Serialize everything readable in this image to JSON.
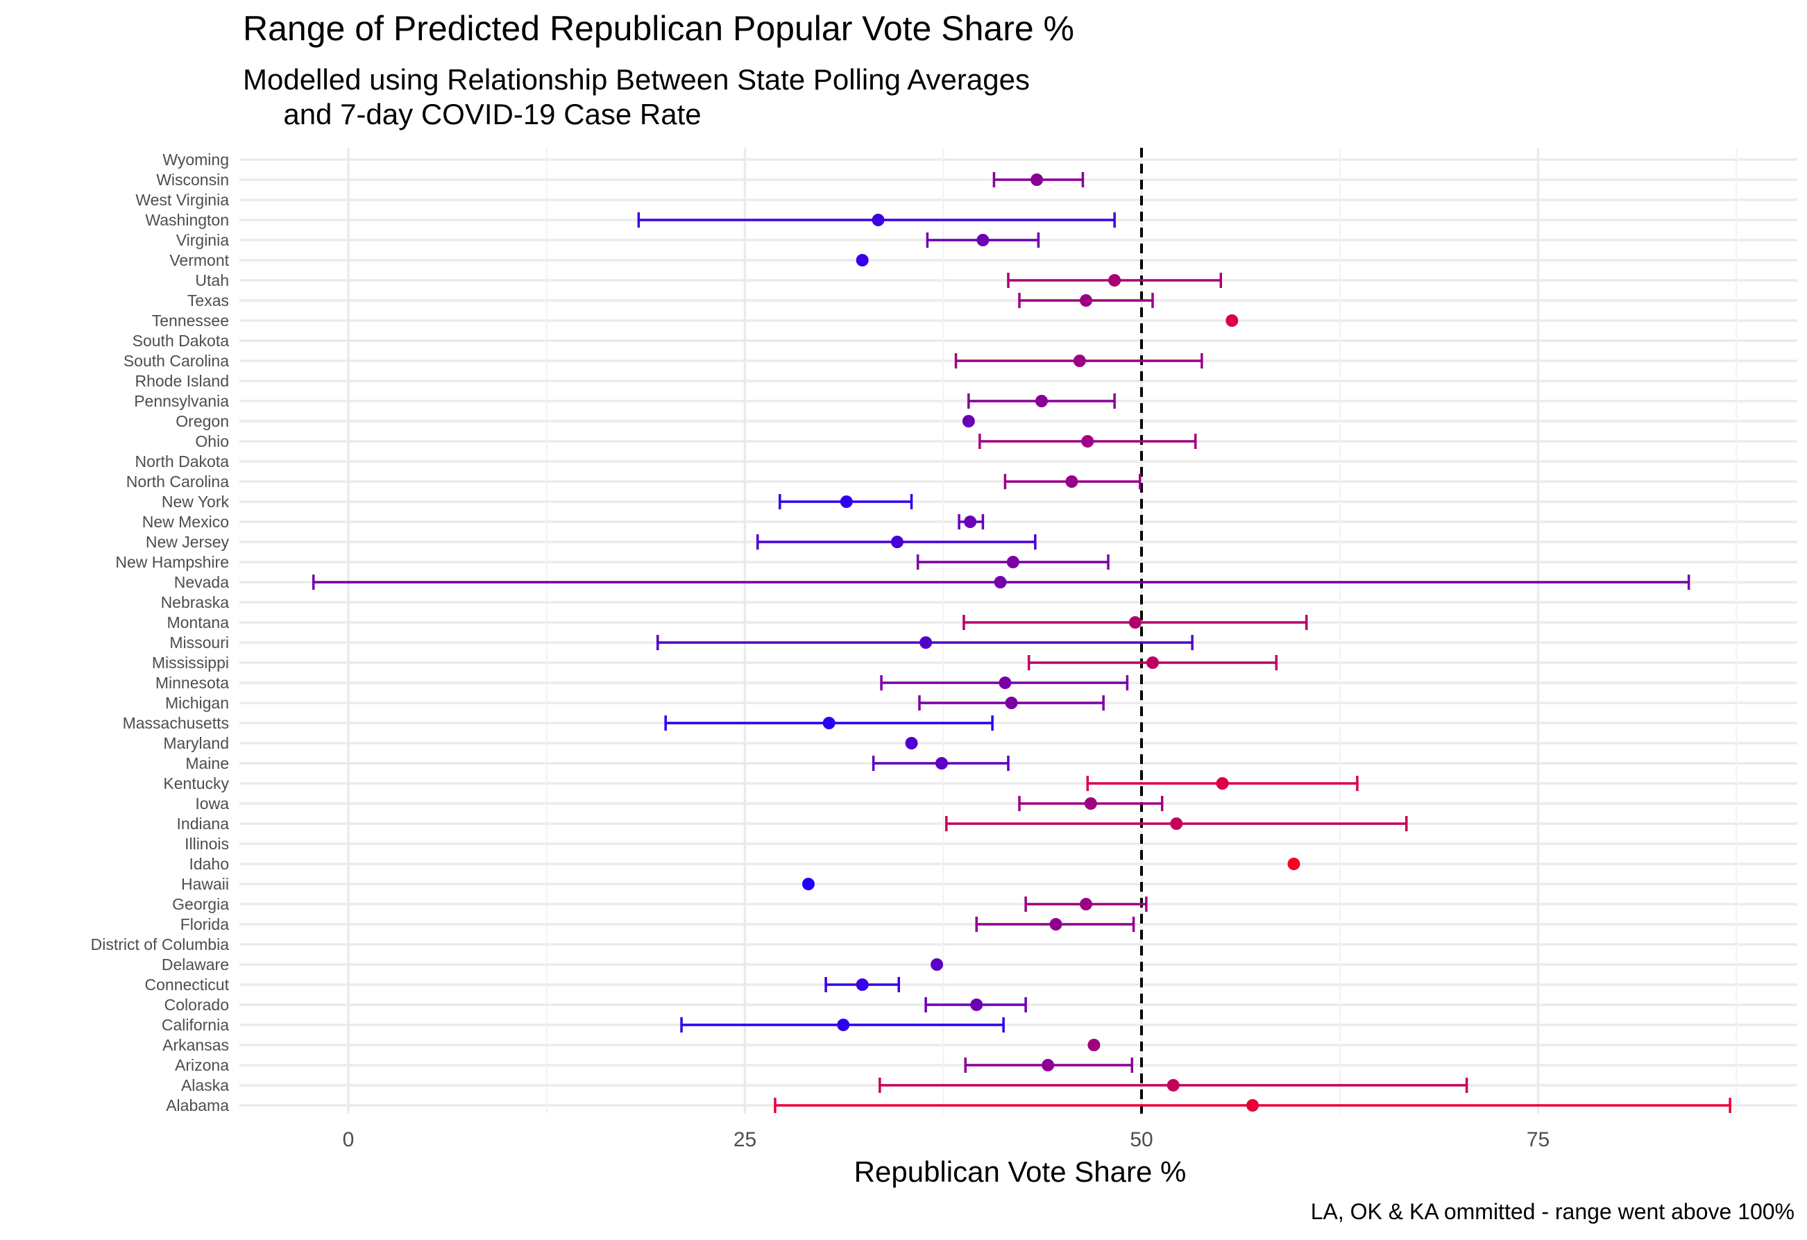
{
  "chart_data": {
    "type": "errorbar-dot",
    "title": "Range of Predicted Republican Popular Vote Share %",
    "subtitle": "Modelled using Relationship Between State Polling Averages\n     and 7-day COVID-19 Case Rate",
    "xlabel": "Republican Vote Share %",
    "ylabel": "",
    "caption": "LA, OK & KA ommitted - range went above 100%",
    "xlim": [
      -6.5,
      91.5
    ],
    "xticks": [
      0,
      25,
      50,
      75
    ],
    "xtick_labels": [
      "0",
      "25",
      "50",
      "75"
    ],
    "reference_line": 50,
    "grid": true,
    "color_scale": {
      "low": "#1f00ff",
      "high": "#ff0022"
    },
    "states": [
      {
        "name": "Wyoming",
        "value": null,
        "low": null,
        "high": null
      },
      {
        "name": "Wisconsin",
        "value": 43.4,
        "low": 40.7,
        "high": 46.3
      },
      {
        "name": "West Virginia",
        "value": null,
        "low": null,
        "high": null
      },
      {
        "name": "Washington",
        "value": 33.4,
        "low": 18.3,
        "high": 48.3
      },
      {
        "name": "Virginia",
        "value": 40.0,
        "low": 36.5,
        "high": 43.5
      },
      {
        "name": "Vermont",
        "value": 32.4,
        "low": null,
        "high": null
      },
      {
        "name": "Utah",
        "value": 48.3,
        "low": 41.6,
        "high": 55.0
      },
      {
        "name": "Texas",
        "value": 46.5,
        "low": 42.3,
        "high": 50.7
      },
      {
        "name": "Tennessee",
        "value": 55.7,
        "low": null,
        "high": null
      },
      {
        "name": "South Dakota",
        "value": null,
        "low": null,
        "high": null
      },
      {
        "name": "South Carolina",
        "value": 46.1,
        "low": 38.3,
        "high": 53.8
      },
      {
        "name": "Rhode Island",
        "value": null,
        "low": null,
        "high": null
      },
      {
        "name": "Pennsylvania",
        "value": 43.7,
        "low": 39.1,
        "high": 48.3
      },
      {
        "name": "Oregon",
        "value": 39.1,
        "low": null,
        "high": null
      },
      {
        "name": "Ohio",
        "value": 46.6,
        "low": 39.8,
        "high": 53.4
      },
      {
        "name": "North Dakota",
        "value": null,
        "low": null,
        "high": null
      },
      {
        "name": "North Carolina",
        "value": 45.6,
        "low": 41.4,
        "high": 49.9
      },
      {
        "name": "New York",
        "value": 31.4,
        "low": 27.2,
        "high": 35.5
      },
      {
        "name": "New Mexico",
        "value": 39.2,
        "low": 38.5,
        "high": 40.0
      },
      {
        "name": "New Jersey",
        "value": 34.6,
        "low": 25.8,
        "high": 43.3
      },
      {
        "name": "New Hampshire",
        "value": 41.9,
        "low": 35.9,
        "high": 47.9
      },
      {
        "name": "Nevada",
        "value": 41.1,
        "low": -2.2,
        "high": 84.5
      },
      {
        "name": "Nebraska",
        "value": null,
        "low": null,
        "high": null
      },
      {
        "name": "Montana",
        "value": 49.6,
        "low": 38.8,
        "high": 60.4
      },
      {
        "name": "Missouri",
        "value": 36.4,
        "low": 19.5,
        "high": 53.2
      },
      {
        "name": "Mississippi",
        "value": 50.7,
        "low": 42.9,
        "high": 58.5
      },
      {
        "name": "Minnesota",
        "value": 41.4,
        "low": 33.6,
        "high": 49.1
      },
      {
        "name": "Michigan",
        "value": 41.8,
        "low": 36.0,
        "high": 47.6
      },
      {
        "name": "Massachusetts",
        "value": 30.3,
        "low": 20.0,
        "high": 40.6
      },
      {
        "name": "Maryland",
        "value": 35.5,
        "low": null,
        "high": null
      },
      {
        "name": "Maine",
        "value": 37.4,
        "low": 33.1,
        "high": 41.6
      },
      {
        "name": "Kentucky",
        "value": 55.1,
        "low": 46.6,
        "high": 63.6
      },
      {
        "name": "Iowa",
        "value": 46.8,
        "low": 42.3,
        "high": 51.3
      },
      {
        "name": "Indiana",
        "value": 52.2,
        "low": 37.7,
        "high": 66.7
      },
      {
        "name": "Illinois",
        "value": null,
        "low": null,
        "high": null
      },
      {
        "name": "Idaho",
        "value": 59.6,
        "low": null,
        "high": null
      },
      {
        "name": "Hawaii",
        "value": 29.0,
        "low": null,
        "high": null
      },
      {
        "name": "Georgia",
        "value": 46.5,
        "low": 42.7,
        "high": 50.3
      },
      {
        "name": "Florida",
        "value": 44.6,
        "low": 39.6,
        "high": 49.5
      },
      {
        "name": "District of Columbia",
        "value": null,
        "low": null,
        "high": null
      },
      {
        "name": "Delaware",
        "value": 37.1,
        "low": null,
        "high": null
      },
      {
        "name": "Connecticut",
        "value": 32.4,
        "low": 30.1,
        "high": 34.7
      },
      {
        "name": "Colorado",
        "value": 39.6,
        "low": 36.4,
        "high": 42.7
      },
      {
        "name": "California",
        "value": 31.2,
        "low": 21.0,
        "high": 41.3
      },
      {
        "name": "Arkansas",
        "value": 47.0,
        "low": null,
        "high": null
      },
      {
        "name": "Arizona",
        "value": 44.1,
        "low": 38.9,
        "high": 49.4
      },
      {
        "name": "Alaska",
        "value": 52.0,
        "low": 33.5,
        "high": 70.5
      },
      {
        "name": "Alabama",
        "value": 57.0,
        "low": 26.9,
        "high": 87.1
      }
    ]
  }
}
